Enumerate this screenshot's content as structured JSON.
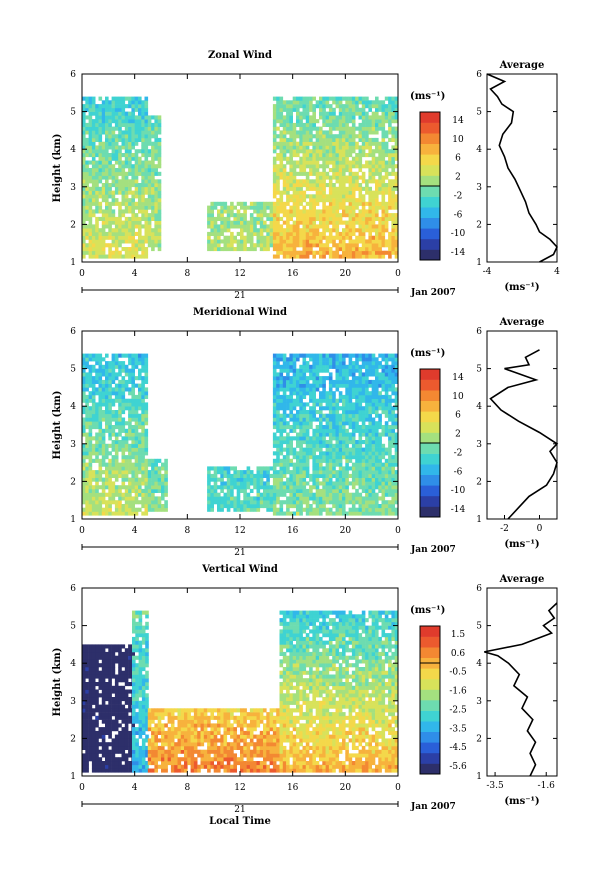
{
  "chart_data": [
    {
      "type": "heatmap",
      "title": "Zonal Wind",
      "xlabel": "",
      "ylabel": "Height (km)",
      "xlim": [
        0,
        24
      ],
      "ylim": [
        1,
        6
      ],
      "x_ticks": [
        "0",
        "4",
        "8",
        "12",
        "16",
        "20",
        "0"
      ],
      "y_ticks": [
        "1",
        "2",
        "3",
        "4",
        "5",
        "6"
      ],
      "colorbar": {
        "label": "(ms⁻¹)",
        "ticks": [
          "14",
          "10",
          "6",
          "2",
          "-2",
          "-6",
          "-10",
          "-14"
        ],
        "range": [
          -16,
          16
        ]
      },
      "date_bar": {
        "day": "21",
        "month_label": "Jan 2007"
      },
      "data_columns": [
        {
          "t_start": 0,
          "t_end": 5,
          "z_min": 1.1,
          "z_max": 5.4,
          "value_low": 4,
          "value_high": -4
        },
        {
          "t_start": 5,
          "t_end": 6,
          "z_min": 1.3,
          "z_max": 4.9,
          "value_low": 2,
          "value_high": -2
        },
        {
          "t_start": 9.5,
          "t_end": 14.5,
          "z_min": 1.3,
          "z_max": 2.6,
          "value_low": 2,
          "value_high": 0
        },
        {
          "t_start": 14.5,
          "t_end": 24,
          "z_min": 1.1,
          "z_max": 5.4,
          "value_low": 8,
          "value_high": -2
        }
      ],
      "average_profile": {
        "title": "Average",
        "xlabel": "(ms⁻¹)",
        "xlim": [
          -4,
          4
        ],
        "x_ticks": [
          "-4",
          "4"
        ],
        "y_ticks": [
          "1",
          "2",
          "3",
          "4",
          "5",
          "6"
        ],
        "height": [
          1.0,
          1.2,
          1.4,
          1.6,
          1.8,
          2.0,
          2.3,
          2.6,
          2.9,
          3.2,
          3.5,
          3.8,
          4.1,
          4.4,
          4.7,
          5.0,
          5.2,
          5.4,
          5.6,
          5.8,
          6.0
        ],
        "value": [
          2.0,
          3.6,
          4.0,
          3.2,
          2.0,
          1.6,
          0.8,
          0.4,
          -0.2,
          -0.8,
          -1.6,
          -2.0,
          -2.6,
          -2.2,
          -1.2,
          -1.0,
          -2.3,
          -2.8,
          -3.6,
          -2.0,
          -4.0
        ]
      }
    },
    {
      "type": "heatmap",
      "title": "Meridional Wind",
      "xlabel": "",
      "ylabel": "Height (km)",
      "xlim": [
        0,
        24
      ],
      "ylim": [
        1,
        6
      ],
      "x_ticks": [
        "0",
        "4",
        "8",
        "12",
        "16",
        "20",
        "0"
      ],
      "y_ticks": [
        "1",
        "2",
        "3",
        "4",
        "5",
        "6"
      ],
      "colorbar": {
        "label": "(ms⁻¹)",
        "ticks": [
          "14",
          "10",
          "6",
          "2",
          "-2",
          "-6",
          "-10",
          "-14"
        ],
        "range": [
          -16,
          16
        ]
      },
      "date_bar": {
        "day": "21",
        "month_label": "Jan 2007"
      },
      "data_columns": [
        {
          "t_start": 0,
          "t_end": 5,
          "z_min": 1.1,
          "z_max": 5.4,
          "value_low": 3,
          "value_high": -5
        },
        {
          "t_start": 5,
          "t_end": 6.5,
          "z_min": 1.2,
          "z_max": 2.6,
          "value_low": 0,
          "value_high": -2
        },
        {
          "t_start": 9.5,
          "t_end": 14.5,
          "z_min": 1.2,
          "z_max": 2.4,
          "value_low": -2,
          "value_high": -3
        },
        {
          "t_start": 14.5,
          "t_end": 24,
          "z_min": 1.1,
          "z_max": 5.4,
          "value_low": 0,
          "value_high": -6
        }
      ],
      "average_profile": {
        "title": "Average",
        "xlabel": "(ms⁻¹)",
        "xlim": [
          -3,
          1
        ],
        "x_ticks": [
          "-2",
          "0"
        ],
        "y_ticks": [
          "1",
          "2",
          "3",
          "4",
          "5",
          "6"
        ],
        "height": [
          1.0,
          1.3,
          1.6,
          1.9,
          2.2,
          2.5,
          2.8,
          3.0,
          3.3,
          3.6,
          3.9,
          4.2,
          4.5,
          4.7,
          4.9,
          5.0,
          5.1,
          5.3,
          5.5
        ],
        "value": [
          -1.8,
          -1.2,
          -0.6,
          0.4,
          0.8,
          1.0,
          0.6,
          1.0,
          0.0,
          -1.2,
          -2.2,
          -2.8,
          -1.8,
          -0.2,
          -1.4,
          -2.0,
          -0.6,
          -0.8,
          0.0
        ]
      }
    },
    {
      "type": "heatmap",
      "title": "Vertical Wind",
      "xlabel": "Local Time",
      "ylabel": "Height (km)",
      "xlim": [
        0,
        24
      ],
      "ylim": [
        1,
        6
      ],
      "x_ticks": [
        "0",
        "4",
        "8",
        "12",
        "16",
        "20",
        "0"
      ],
      "y_ticks": [
        "1",
        "2",
        "3",
        "4",
        "5",
        "6"
      ],
      "colorbar": {
        "label": "(ms⁻¹)",
        "ticks": [
          "1.5",
          "0.6",
          "-0.5",
          "-1.6",
          "-2.5",
          "-3.5",
          "-4.5",
          "-5.6"
        ],
        "range": [
          -6.0,
          2.0
        ]
      },
      "date_bar": {
        "day": "21",
        "month_label": "Jan 2007"
      },
      "data_columns": [
        {
          "t_start": 0,
          "t_end": 3.8,
          "z_min": 1.1,
          "z_max": 4.5,
          "value_low": -6.0,
          "value_high": -6.0
        },
        {
          "t_start": 3.8,
          "t_end": 5,
          "z_min": 1.1,
          "z_max": 5.4,
          "value_low": -3.5,
          "value_high": -2.5
        },
        {
          "t_start": 5,
          "t_end": 15,
          "z_min": 1.1,
          "z_max": 2.8,
          "value_low": 0.6,
          "value_high": -0.5
        },
        {
          "t_start": 15,
          "t_end": 24,
          "z_min": 1.1,
          "z_max": 5.4,
          "value_low": 0.0,
          "value_high": -3.0
        }
      ],
      "average_profile": {
        "title": "Average",
        "xlabel": "(ms⁻¹)",
        "xlim": [
          -3.8,
          -1.2
        ],
        "x_ticks": [
          "-3.5",
          "-1.6"
        ],
        "y_ticks": [
          "1",
          "2",
          "3",
          "4",
          "5",
          "6"
        ],
        "height": [
          1.0,
          1.3,
          1.6,
          1.9,
          2.2,
          2.5,
          2.8,
          3.1,
          3.4,
          3.7,
          4.0,
          4.2,
          4.3,
          4.5,
          4.8,
          5.0,
          5.2,
          5.4,
          5.6
        ],
        "value": [
          -2.2,
          -2.0,
          -2.2,
          -2.0,
          -2.3,
          -2.1,
          -2.5,
          -2.3,
          -2.8,
          -2.6,
          -3.0,
          -3.4,
          -3.9,
          -2.5,
          -1.4,
          -1.7,
          -1.3,
          -1.5,
          -1.2
        ]
      }
    }
  ]
}
